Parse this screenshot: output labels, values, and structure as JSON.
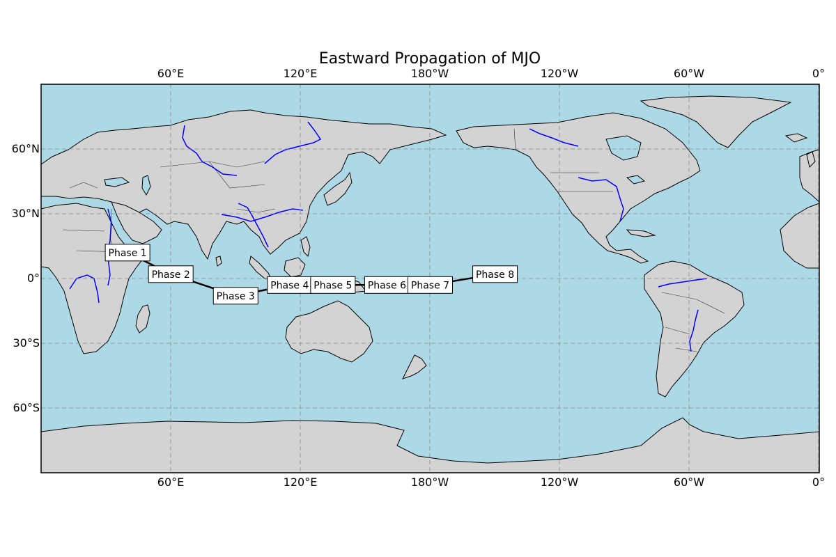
{
  "map": {
    "title": "Eastward Propagation of MJO",
    "projection": "PlateCarree, central longitude 180",
    "colors": {
      "ocean": "#add8e6",
      "land": "#d3d3d3",
      "coastline": "#000000",
      "rivers": "#0000ff",
      "gridlines": "#808080",
      "track": "#000000",
      "label_box": "#ffffff"
    },
    "lon_ticks": [
      "60°E",
      "120°E",
      "180°W",
      "120°W",
      "60°W",
      "0°"
    ],
    "lat_ticks": [
      "60°N",
      "30°N",
      "0°",
      "30°S",
      "60°S"
    ],
    "lon_range": [
      0,
      360
    ],
    "lat_range": [
      -90,
      90
    ],
    "gridlines": true,
    "mjo_phases": [
      {
        "label": "Phase 1",
        "lon": 40,
        "lat": 12
      },
      {
        "label": "Phase 2",
        "lon": 60,
        "lat": 2
      },
      {
        "label": "Phase 3",
        "lon": 90,
        "lat": -8
      },
      {
        "label": "Phase 4",
        "lon": 115,
        "lat": -3
      },
      {
        "label": "Phase 5",
        "lon": 135,
        "lat": -3
      },
      {
        "label": "Phase 6",
        "lon": 160,
        "lat": -3
      },
      {
        "label": "Phase 7",
        "lon": 180,
        "lat": -3
      },
      {
        "label": "Phase 8",
        "lon": 210,
        "lat": 2
      }
    ]
  }
}
